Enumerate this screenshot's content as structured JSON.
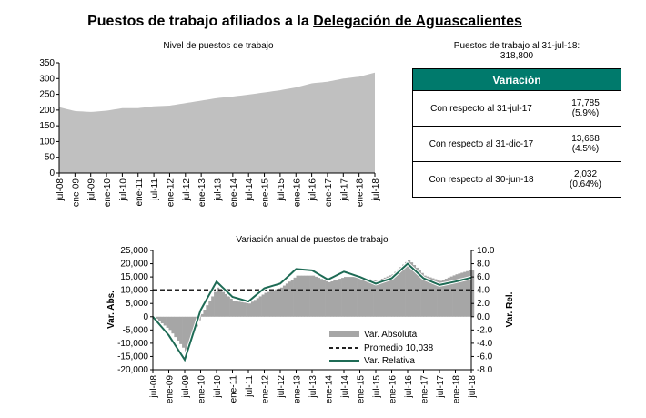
{
  "title": {
    "prefix": "Puestos de trabajo afiliados a la ",
    "underlined": "Delegación de Aguascalientes"
  },
  "summary": {
    "line1": "Puestos de trabajo al 31-jul-18:",
    "line2": "318,800"
  },
  "table": {
    "header": "Variación",
    "rows": [
      {
        "label": "Con respecto al 31-jul-17",
        "value": "17,785",
        "pct": "(5.9%)"
      },
      {
        "label": "Con respecto al 31-dic-17",
        "value": "13,668",
        "pct": "(4.5%)"
      },
      {
        "label": "Con respecto al 30-jun-18",
        "value": "2,032",
        "pct": "(0.64%)"
      }
    ]
  },
  "chart_data": [
    {
      "type": "area",
      "title": "Nivel de puestos de trabajo",
      "ylim": [
        0,
        350
      ],
      "yticks": [
        "0",
        "50",
        "100",
        "150",
        "200",
        "250",
        "300",
        "350"
      ],
      "categories": [
        "jul-08",
        "ene-09",
        "jul-09",
        "ene-10",
        "jul-10",
        "ene-11",
        "jul-11",
        "ene-12",
        "jul-12",
        "ene-13",
        "jul-13",
        "ene-14",
        "jul-14",
        "ene-15",
        "jul-15",
        "ene-16",
        "jul-16",
        "ene-17",
        "jul-17",
        "ene-18",
        "jul-18"
      ],
      "values": [
        209,
        197,
        194,
        198,
        206,
        206,
        212,
        214,
        222,
        230,
        238,
        243,
        249,
        256,
        263,
        272,
        285,
        290,
        300,
        306,
        319
      ],
      "color": "#c0c0c0"
    },
    {
      "type": "bar+line",
      "title": "Variación anual de puestos de trabajo",
      "ylabel": "Var. Abs.",
      "y2label": "Var. Rel.",
      "ylim": [
        -20000,
        25000
      ],
      "y2lim": [
        -8,
        10
      ],
      "yticks": [
        "-20,000",
        "-15,000",
        "-10,000",
        "-5,000",
        "0",
        "5,000",
        "10,000",
        "15,000",
        "20,000",
        "25,000"
      ],
      "y2ticks": [
        "-8.0",
        "-6.0",
        "-4.0",
        "-2.0",
        "0.0",
        "2.0",
        "4.0",
        "6.0",
        "8.0",
        "10.0"
      ],
      "categories": [
        "jul-08",
        "ene-09",
        "jul-09",
        "ene-10",
        "jul-10",
        "ene-11",
        "jul-11",
        "ene-12",
        "jul-12",
        "ene-13",
        "jul-13",
        "ene-14",
        "jul-14",
        "ene-15",
        "jul-15",
        "ene-16",
        "jul-16",
        "ene-17",
        "jul-17",
        "ene-18",
        "jul-18"
      ],
      "series": [
        {
          "name": "Var. Absoluta",
          "color": "#a6a6a6",
          "values": [
            0,
            -5000,
            -13000,
            1000,
            11000,
            6000,
            5000,
            9000,
            11000,
            15500,
            15500,
            13000,
            15000,
            15000,
            13500,
            16000,
            21500,
            15500,
            13500,
            16000,
            17785
          ]
        },
        {
          "name": "Promedio 10,038",
          "color": "#222222",
          "value": 10038
        },
        {
          "name": "Var. Relativa",
          "color": "#1e6b55",
          "values": [
            0,
            -2.8,
            -6.5,
            1.0,
            5.3,
            3.0,
            2.3,
            4.3,
            5.0,
            7.2,
            7.0,
            5.6,
            6.8,
            6.0,
            5.0,
            5.8,
            8.0,
            5.8,
            4.8,
            5.3,
            5.9
          ]
        }
      ]
    }
  ]
}
